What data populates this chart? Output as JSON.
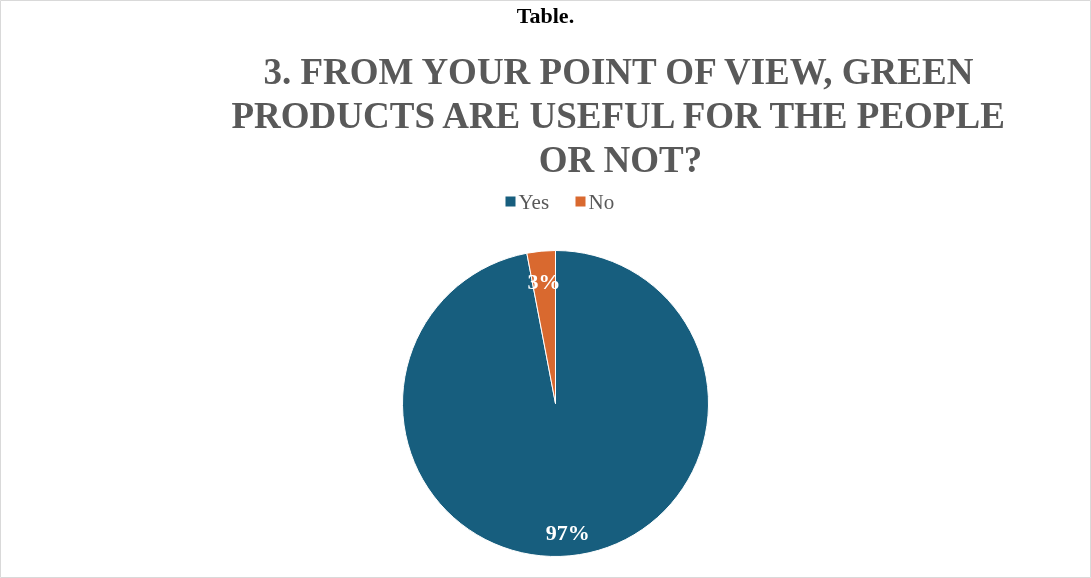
{
  "chart_data": {
    "type": "pie",
    "title": "3. FROM YOUR POINT OF VIEW, GREEN PRODUCTS ARE USEFUL FOR THE PEOPLE OR NOT?",
    "annotations": [
      "Table."
    ],
    "categories": [
      "Yes",
      "No"
    ],
    "values": [
      97,
      3
    ],
    "colors": [
      "#175e7e",
      "#d9692f"
    ],
    "value_labels": [
      "97%",
      "3%"
    ],
    "legend": "top"
  }
}
